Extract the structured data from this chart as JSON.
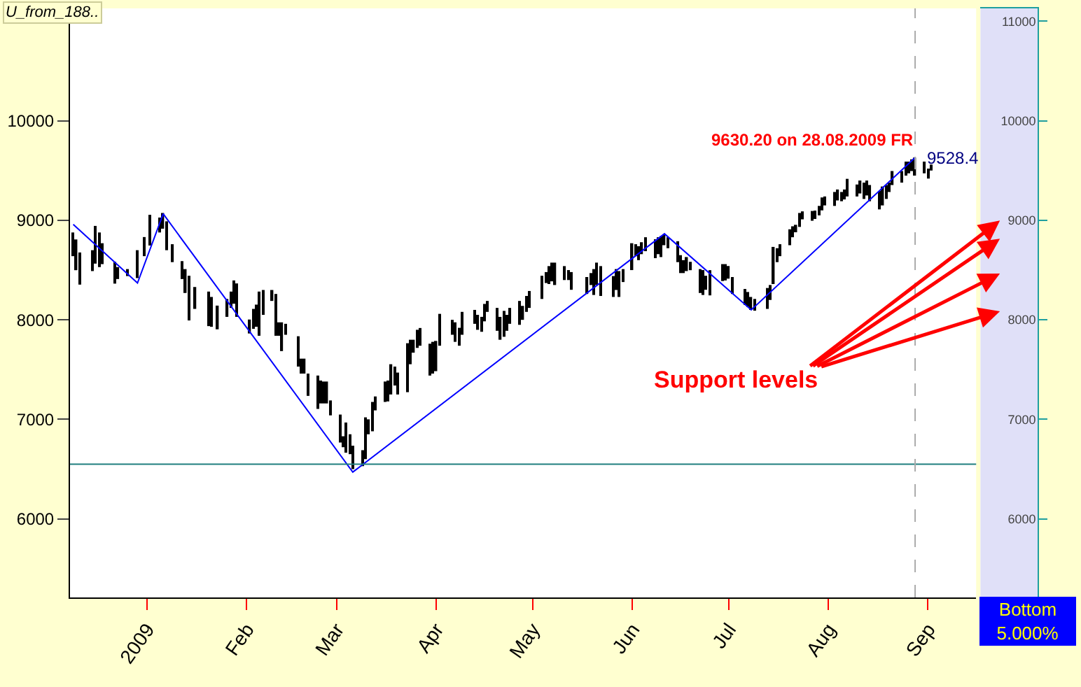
{
  "chart_data": {
    "type": "bar",
    "title": "U_from_188..",
    "xlim": [
      "2008-12-08",
      "2009-09-16"
    ],
    "xticks": [
      {
        "value": "2009-01-01",
        "label": "2009"
      },
      {
        "value": "2009-02-01",
        "label": "Feb"
      },
      {
        "value": "2009-03-01",
        "label": "Mar"
      },
      {
        "value": "2009-04-01",
        "label": "Apr"
      },
      {
        "value": "2009-05-01",
        "label": "May"
      },
      {
        "value": "2009-06-01",
        "label": "Jun"
      },
      {
        "value": "2009-07-01",
        "label": "Jul"
      },
      {
        "value": "2009-08-01",
        "label": "Aug"
      },
      {
        "value": "2009-09-01",
        "label": "Sep"
      }
    ],
    "ylim": [
      5210,
      11130
    ],
    "yticks": [
      6000,
      7000,
      8000,
      9000,
      10000
    ],
    "y2lim": [
      5210,
      11130
    ],
    "y2ticks": [
      6000,
      7000,
      8000,
      9000,
      10000,
      11000
    ],
    "series": [
      {
        "color": "#000000",
        "x": [
          "2008-12-09",
          "2008-12-10",
          "2008-12-11",
          "2008-12-15",
          "2008-12-16",
          "2008-12-17",
          "2008-12-18",
          "2008-12-22",
          "2008-12-23",
          "2008-12-26",
          "2008-12-29",
          "2008-12-31",
          "2009-01-02",
          "2009-01-05",
          "2009-01-06",
          "2009-01-07",
          "2009-01-09",
          "2009-01-12",
          "2009-01-13",
          "2009-01-14",
          "2009-01-16",
          "2009-01-20",
          "2009-01-21",
          "2009-01-23",
          "2009-01-26",
          "2009-01-27",
          "2009-01-28",
          "2009-01-29",
          "2009-02-02",
          "2009-02-03",
          "2009-02-04",
          "2009-02-05",
          "2009-02-06",
          "2009-02-09",
          "2009-02-10",
          "2009-02-11",
          "2009-02-12",
          "2009-02-13",
          "2009-02-17",
          "2009-02-18",
          "2009-02-19",
          "2009-02-20",
          "2009-02-23",
          "2009-02-24",
          "2009-02-25",
          "2009-02-26",
          "2009-02-27",
          "2009-03-02",
          "2009-03-03",
          "2009-03-04",
          "2009-03-05",
          "2009-03-06",
          "2009-03-09",
          "2009-03-10",
          "2009-03-11",
          "2009-03-12",
          "2009-03-13",
          "2009-03-16",
          "2009-03-17",
          "2009-03-18",
          "2009-03-19",
          "2009-03-20",
          "2009-03-23",
          "2009-03-24",
          "2009-03-25",
          "2009-03-26",
          "2009-03-27",
          "2009-03-30",
          "2009-03-31",
          "2009-04-01",
          "2009-04-02",
          "2009-04-06",
          "2009-04-07",
          "2009-04-08",
          "2009-04-09",
          "2009-04-13",
          "2009-04-14",
          "2009-04-15",
          "2009-04-16",
          "2009-04-17",
          "2009-04-20",
          "2009-04-21",
          "2009-04-22",
          "2009-04-23",
          "2009-04-24",
          "2009-04-27",
          "2009-04-28",
          "2009-04-29",
          "2009-04-30",
          "2009-05-04",
          "2009-05-05",
          "2009-05-06",
          "2009-05-07",
          "2009-05-08",
          "2009-05-11",
          "2009-05-12",
          "2009-05-13",
          "2009-05-18",
          "2009-05-19",
          "2009-05-20",
          "2009-05-21",
          "2009-05-22",
          "2009-05-26",
          "2009-05-27",
          "2009-05-28",
          "2009-05-29",
          "2009-06-01",
          "2009-06-02",
          "2009-06-03",
          "2009-06-04",
          "2009-06-05",
          "2009-06-08",
          "2009-06-09",
          "2009-06-10",
          "2009-06-11",
          "2009-06-12",
          "2009-06-15",
          "2009-06-16",
          "2009-06-17",
          "2009-06-18",
          "2009-06-19",
          "2009-06-22",
          "2009-06-23",
          "2009-06-24",
          "2009-06-25",
          "2009-06-29",
          "2009-06-30",
          "2009-07-01",
          "2009-07-02",
          "2009-07-06",
          "2009-07-07",
          "2009-07-08",
          "2009-07-09",
          "2009-07-13",
          "2009-07-14",
          "2009-07-15",
          "2009-07-16",
          "2009-07-17",
          "2009-07-20",
          "2009-07-21",
          "2009-07-22",
          "2009-07-23",
          "2009-07-24",
          "2009-07-27",
          "2009-07-28",
          "2009-07-29",
          "2009-07-30",
          "2009-07-31",
          "2009-08-03",
          "2009-08-04",
          "2009-08-05",
          "2009-08-06",
          "2009-08-07",
          "2009-08-10",
          "2009-08-11",
          "2009-08-12",
          "2009-08-13",
          "2009-08-14",
          "2009-08-17",
          "2009-08-18",
          "2009-08-19",
          "2009-08-20",
          "2009-08-21",
          "2009-08-24",
          "2009-08-25",
          "2009-08-26",
          "2009-08-27",
          "2009-08-28",
          "2009-08-31",
          "2009-09-01",
          "2009-09-02"
        ],
        "base": [
          8640,
          8499,
          8354,
          8490,
          8565,
          8530,
          8560,
          8364,
          8410,
          8440,
          8420,
          8640,
          8747,
          8878,
          8916,
          8700,
          8580,
          8410,
          8270,
          7994,
          8110,
          7937,
          7930,
          7905,
          8030,
          8120,
          8162,
          8030,
          7863,
          7910,
          7930,
          7840,
          8050,
          8190,
          7840,
          7840,
          7686,
          7850,
          7530,
          7460,
          7460,
          7236,
          7105,
          7160,
          7160,
          7160,
          7040,
          6767,
          6720,
          6665,
          6650,
          6500,
          6530,
          6600,
          6850,
          6880,
          7090,
          7175,
          7180,
          7250,
          7340,
          7250,
          7273,
          7554,
          7670,
          7718,
          7740,
          7440,
          7460,
          7484,
          7740,
          7850,
          7779,
          7740,
          7850,
          7960,
          7900,
          7880,
          7985,
          8080,
          7890,
          7800,
          7830,
          7890,
          7960,
          7950,
          8000,
          8080,
          8120,
          8210,
          8370,
          8360,
          8387,
          8350,
          8400,
          8400,
          8302,
          8260,
          8350,
          8250,
          8350,
          8240,
          8230,
          8300,
          8230,
          8380,
          8500,
          8640,
          8600,
          8660,
          8690,
          8620,
          8660,
          8631,
          8750,
          8720,
          8580,
          8470,
          8470,
          8490,
          8499,
          8270,
          8250,
          8302,
          8246,
          8390,
          8396,
          8414,
          8260,
          8150,
          8130,
          8100,
          8092,
          8110,
          8200,
          8360,
          8580,
          8640,
          8750,
          8830,
          8880,
          8934,
          9010,
          8996,
          9014,
          9050,
          9100,
          9150,
          9145,
          9200,
          9192,
          9210,
          9240,
          9240,
          9270,
          9215,
          9250,
          9192,
          9110,
          9150,
          9215,
          9285,
          9355,
          9379,
          9450,
          9473,
          9496,
          9450,
          9473,
          9420,
          9500
        ],
        "values": [
          238,
          309,
          323,
          210,
          379,
          348,
          210,
          219,
          120,
          70,
          280,
          192,
          309,
          150,
          158,
          290,
          180,
          180,
          240,
          449,
          220,
          347,
          300,
          238,
          180,
          164,
          234,
          336,
          140,
          200,
          223,
          444,
          250,
          110,
          420,
          135,
          289,
          110,
          305,
          150,
          150,
          224,
          335,
          230,
          220,
          220,
          150,
          281,
          110,
          303,
          200,
          235,
          160,
          420,
          150,
          295,
          140,
          205,
          210,
          304,
          190,
          220,
          492,
          246,
          130,
          182,
          178,
          320,
          319,
          304,
          320,
          150,
          196,
          180,
          230,
          140,
          150,
          150,
          175,
          110,
          230,
          230,
          260,
          160,
          160,
          240,
          140,
          160,
          170,
          233,
          110,
          180,
          188,
          225,
          140,
          100,
          178,
          170,
          120,
          260,
          225,
          300,
          210,
          210,
          260,
          130,
          270,
          120,
          140,
          120,
          140,
          190,
          170,
          210,
          110,
          110,
          210,
          180,
          130,
          141,
          84,
          240,
          250,
          141,
          253,
          170,
          164,
          127,
          170,
          160,
          150,
          130,
          118,
          210,
          150,
          373,
          140,
          120,
          160,
          110,
          75,
          140,
          80,
          98,
          84,
          95,
          130,
          90,
          140,
          110,
          93,
          100,
          177,
          120,
          130,
          164,
          150,
          163,
          185,
          190,
          140,
          94,
          141,
          117,
          140,
          117,
          117,
          180,
          117,
          100,
          60
        ]
      },
      {
        "type": "line",
        "color": "#0000ff",
        "x": [
          "2008-12-09",
          "2008-12-29",
          "2009-01-06",
          "2009-03-06",
          "2009-06-11",
          "2009-07-08",
          "2009-08-28"
        ],
        "values": [
          8960,
          8370,
          9065,
          6470,
          8865,
          8100,
          9630
        ]
      }
    ],
    "ref_lines": [
      {
        "axis": "y",
        "value": 6550,
        "color": "#1f7f7f",
        "line_style": "solid"
      },
      {
        "axis": "x",
        "value": "2009-08-28",
        "color": "#aaaaaa",
        "line_style": "dashed"
      }
    ],
    "annotations": [
      {
        "text": "9630.20 on 28.08.2009 FR",
        "x": "2009-08-28",
        "y": 9630
      },
      "9528.4",
      "Support levels",
      "Bottom",
      "5.000%"
    ]
  }
}
